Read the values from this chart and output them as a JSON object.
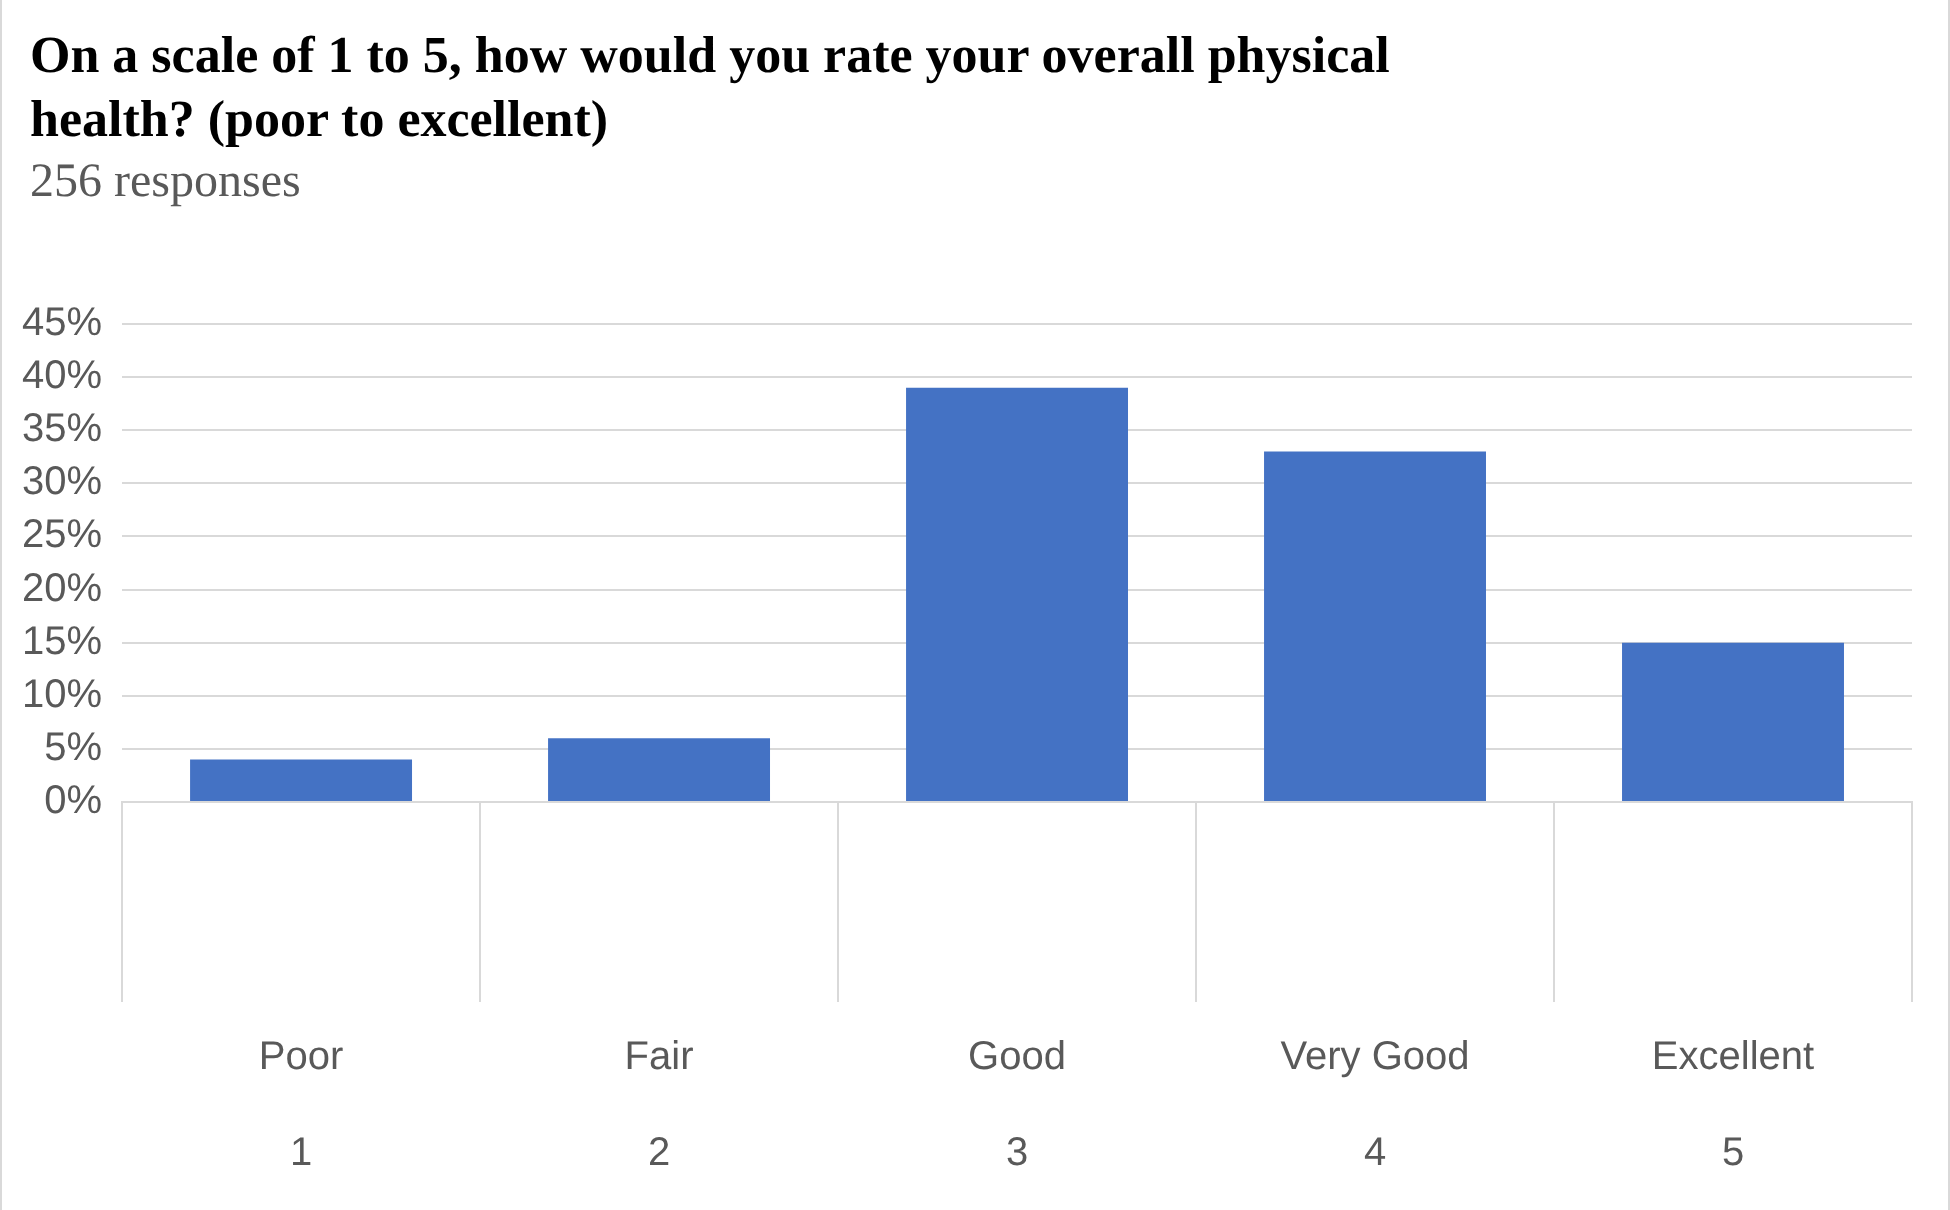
{
  "chart_data": {
    "type": "bar",
    "title": "On a scale of 1 to 5, how would you rate your overall physical health? (poor to excellent)",
    "subtitle": "256 responses",
    "categories": [
      "Poor\n1",
      "Fair\n2",
      "Good\n3",
      "Very Good\n4",
      "Excellent\n5"
    ],
    "values": [
      4,
      6,
      39,
      33,
      15
    ],
    "color": "#4472c4",
    "ylim": [
      0,
      45
    ],
    "yticks": [
      {
        "value": 0,
        "label": "0%"
      },
      {
        "value": 5,
        "label": "5%"
      },
      {
        "value": 10,
        "label": "10%"
      },
      {
        "value": 15,
        "label": "15%"
      },
      {
        "value": 20,
        "label": "20%"
      },
      {
        "value": 25,
        "label": "25%"
      },
      {
        "value": 30,
        "label": "30%"
      },
      {
        "value": 35,
        "label": "35%"
      },
      {
        "value": 40,
        "label": "40%"
      },
      {
        "value": 45,
        "label": "45%"
      }
    ],
    "grid": "y",
    "legend": false
  }
}
